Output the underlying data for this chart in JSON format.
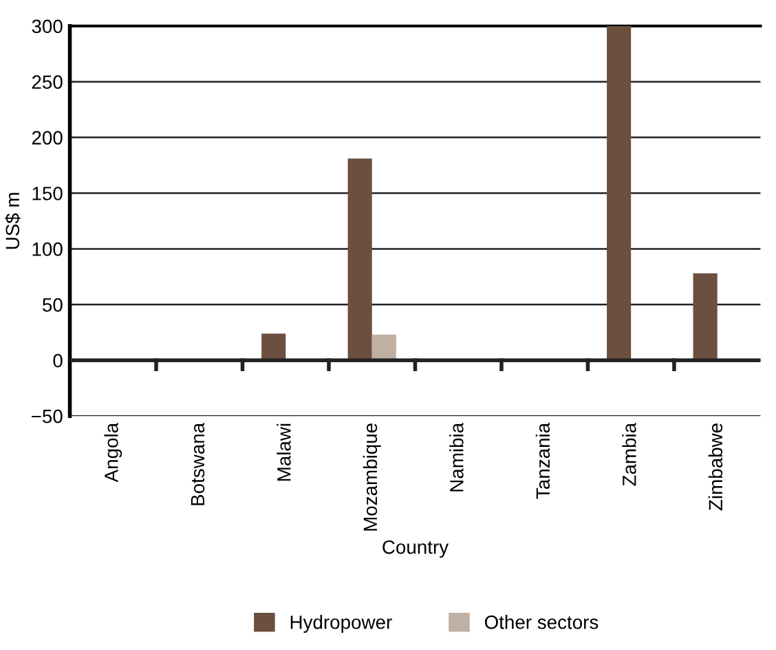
{
  "chart_data": {
    "type": "bar",
    "xlabel": "Country",
    "ylabel": "US$ m",
    "categories": [
      "Angola",
      "Botswana",
      "Malawi",
      "Mozambique",
      "Namibia",
      "Tanzania",
      "Zambia",
      "Zimbabwe"
    ],
    "series": [
      {
        "name": "Hydropower",
        "color": "#6b4f3f",
        "values": [
          0,
          0,
          24,
          181,
          0,
          0,
          300,
          78
        ]
      },
      {
        "name": "Other sectors",
        "color": "#c0afa3",
        "values": [
          0,
          0,
          0,
          23,
          0,
          0,
          0,
          0
        ]
      }
    ],
    "ylim": [
      -50,
      300
    ],
    "yticks": [
      {
        "value": -50,
        "label": "−50"
      },
      0,
      50,
      100,
      150,
      200,
      250,
      300
    ],
    "grid": "y",
    "legend": "bottom"
  }
}
